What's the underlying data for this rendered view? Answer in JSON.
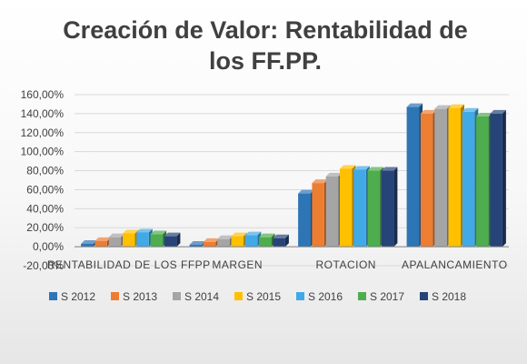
{
  "chart_data": {
    "type": "bar",
    "title_lines": [
      "Creación de Valor: Rentabilidad de",
      "los FF.PP."
    ],
    "categories": [
      "RENTABILIDAD DE LOS FFPP",
      "MARGEN",
      "ROTACION",
      "APALANCAMIENTO"
    ],
    "y_tick_labels": [
      "-20,00%",
      "0,00%",
      "20,00%",
      "40,00%",
      "60,00%",
      "80,00%",
      "100,00%",
      "120,00%",
      "140,00%",
      "160,00%"
    ],
    "ylim": [
      -20,
      160
    ],
    "y_unit": "%",
    "grid": true,
    "legend_position": "bottom",
    "series": [
      {
        "name": "S 2012",
        "color": "#2e75b6",
        "values": [
          3,
          2,
          56,
          147
        ]
      },
      {
        "name": "S 2013",
        "color": "#ed7d31",
        "values": [
          6,
          5,
          67,
          140
        ]
      },
      {
        "name": "S 2014",
        "color": "#a5a5a5",
        "values": [
          10,
          8,
          74,
          145
        ]
      },
      {
        "name": "S 2015",
        "color": "#ffc000",
        "values": [
          14,
          11,
          82,
          146
        ]
      },
      {
        "name": "S 2016",
        "color": "#41a9e6",
        "values": [
          15,
          12,
          81,
          142
        ]
      },
      {
        "name": "S 2017",
        "color": "#4ead4e",
        "values": [
          13,
          10,
          80,
          137
        ]
      },
      {
        "name": "S 2018",
        "color": "#264478",
        "values": [
          11,
          9,
          80,
          140
        ]
      }
    ]
  }
}
